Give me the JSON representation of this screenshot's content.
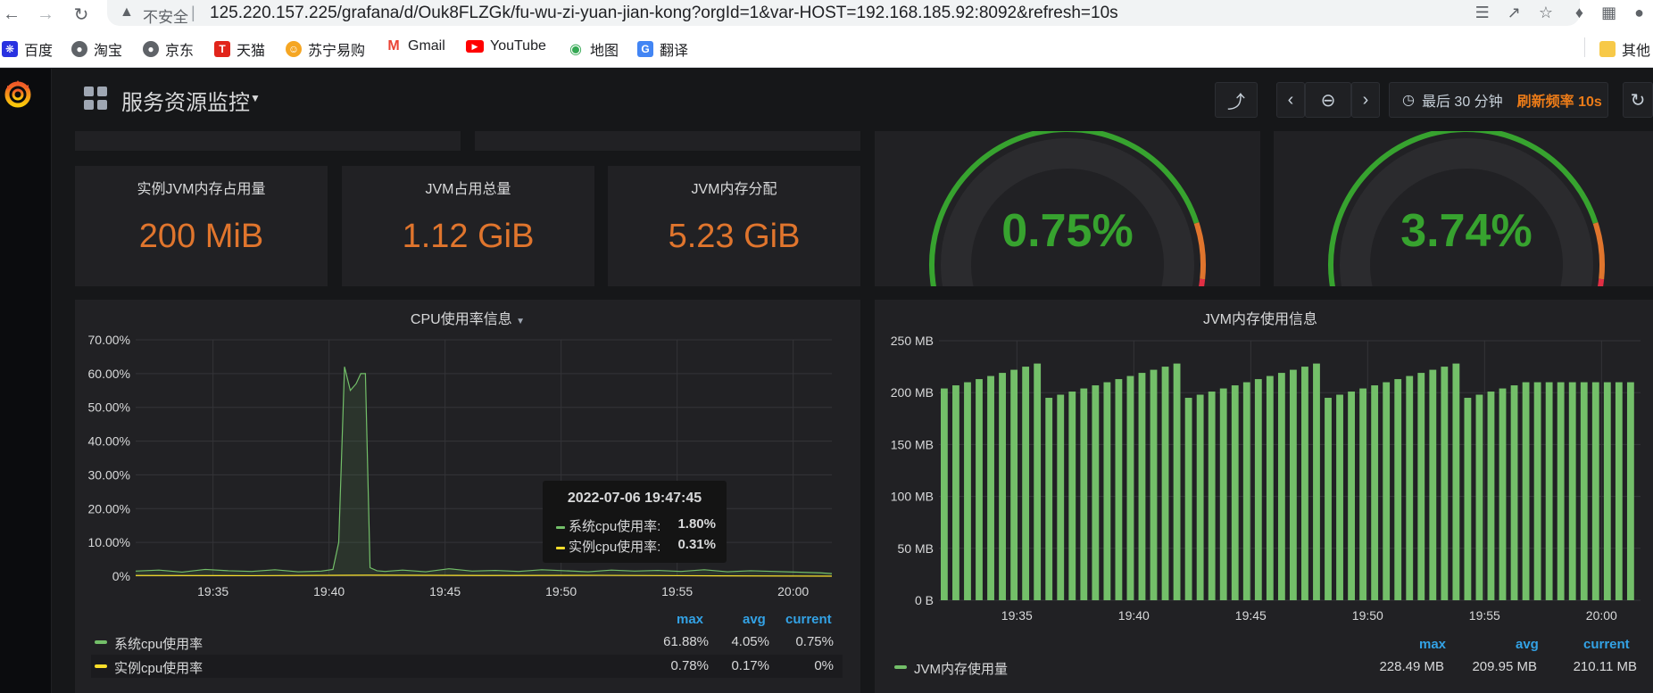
{
  "browser": {
    "security_label": "不安全",
    "url": "125.220.157.225/grafana/d/Ouk8FLZGk/fu-wu-zi-yuan-jian-kong?orgId=1&var-HOST=192.168.185.92:8092&refresh=10s",
    "bookmarks": [
      {
        "label": "百度",
        "icon": "baidu-icon",
        "color": "#2932e1"
      },
      {
        "label": "淘宝",
        "icon": "globe-icon",
        "color": "#5f6368"
      },
      {
        "label": "京东",
        "icon": "globe-icon",
        "color": "#5f6368"
      },
      {
        "label": "天猫",
        "icon": "tmall-icon",
        "color": "#e1251b"
      },
      {
        "label": "苏宁易购",
        "icon": "suning-icon",
        "color": "#f5a623"
      },
      {
        "label": "Gmail",
        "icon": "gmail-icon",
        "color": "#ea4335"
      },
      {
        "label": "YouTube",
        "icon": "youtube-icon",
        "color": "#ff0000"
      },
      {
        "label": "地图",
        "icon": "maps-icon",
        "color": "#34a853"
      },
      {
        "label": "翻译",
        "icon": "translate-icon",
        "color": "#4285f4"
      }
    ],
    "other_bookmarks": "其他"
  },
  "dashboard": {
    "title": "服务资源监控",
    "time_range": "最后 30 分钟",
    "refresh": "刷新频率 10s"
  },
  "stats": [
    {
      "title": "实例JVM内存占用量",
      "value": "200 MiB"
    },
    {
      "title": "JVM占用总量",
      "value": "1.12 GiB"
    },
    {
      "title": "JVM内存分配",
      "value": "5.23 GiB"
    }
  ],
  "gauges": [
    {
      "value": "0.75%",
      "percent": 0.75
    },
    {
      "value": "3.74%",
      "percent": 3.74
    }
  ],
  "colors": {
    "accent": "#eb7b18",
    "green": "#73bf69",
    "yellow": "#fade2a",
    "gauge_green": "#37a32f",
    "gauge_orange": "#e0752d",
    "gauge_red": "#e02f44",
    "legend_head": "#33a2e5"
  },
  "cpu_panel": {
    "title": "CPU使用率信息",
    "legend_headers": [
      "max",
      "avg",
      "current"
    ],
    "legend": [
      {
        "name": "系统cpu使用率",
        "max": "61.88%",
        "avg": "4.05%",
        "current": "0.75%"
      },
      {
        "name": "实例cpu使用率",
        "max": "0.78%",
        "avg": "0.17%",
        "current": "0%"
      }
    ],
    "tooltip": {
      "time": "2022-07-06 19:47:45",
      "rows": [
        {
          "label": "系统cpu使用率:",
          "value": "1.80%"
        },
        {
          "label": "实例cpu使用率:",
          "value": "0.31%"
        }
      ]
    }
  },
  "jvm_panel": {
    "title": "JVM内存使用信息",
    "legend_headers": [
      "max",
      "avg",
      "current"
    ],
    "legend": [
      {
        "name": "JVM内存使用量",
        "max": "228.49 MB",
        "avg": "209.95 MB",
        "current": "210.11 MB"
      }
    ]
  },
  "chart_data": [
    {
      "type": "line",
      "title": "CPU使用率信息",
      "x_ticks": [
        "19:35",
        "19:40",
        "19:45",
        "19:50",
        "19:55",
        "20:00"
      ],
      "y_ticks": [
        "70.00%",
        "60.00%",
        "50.00%",
        "40.00%",
        "30.00%",
        "20.00%",
        "10.00%",
        "0%"
      ],
      "x_range": [
        "19:31:40",
        "20:01:40"
      ],
      "ylim": [
        0,
        70
      ],
      "series": [
        {
          "name": "系统cpu使用率",
          "unit": "%",
          "color": "#73bf69",
          "x_min": [
            0,
            2,
            4,
            6,
            8,
            10,
            12,
            14,
            16,
            17,
            17.5,
            18,
            18.5,
            19,
            19.4,
            19.8,
            20.2,
            20.8,
            21.5,
            23,
            25,
            27,
            29,
            31,
            33,
            35,
            37,
            39,
            41,
            43,
            45,
            47,
            49,
            51,
            53,
            55,
            57,
            59,
            60
          ],
          "values": [
            1.5,
            1.8,
            1.2,
            2.0,
            1.6,
            1.4,
            1.9,
            1.3,
            1.5,
            2.0,
            10,
            62,
            55,
            57,
            60,
            60,
            2.5,
            1.6,
            1.4,
            1.8,
            1.3,
            2.2,
            1.5,
            1.7,
            1.4,
            1.9,
            1.6,
            1.3,
            1.8,
            1.5,
            1.7,
            1.4,
            1.9,
            1.3,
            1.6,
            1.4,
            1.2,
            1.0,
            0.75
          ]
        },
        {
          "name": "实例cpu使用率",
          "unit": "%",
          "color": "#fade2a",
          "x_min": [
            0,
            10,
            20,
            30,
            40,
            50,
            60
          ],
          "values": [
            0.2,
            0.15,
            0.3,
            0.2,
            0.25,
            0.1,
            0.0
          ]
        }
      ]
    },
    {
      "type": "bar",
      "title": "JVM内存使用信息",
      "x_ticks": [
        "19:35",
        "19:40",
        "19:45",
        "19:50",
        "19:55",
        "20:00"
      ],
      "y_ticks": [
        "250 MB",
        "200 MB",
        "150 MB",
        "100 MB",
        "50 MB",
        "0 B"
      ],
      "ylim": [
        0,
        250
      ],
      "series": [
        {
          "name": "JVM内存使用量",
          "unit": "MB",
          "color": "#73bf69",
          "values": [
            204,
            207,
            210,
            213,
            216,
            219,
            222,
            225,
            228,
            195,
            198,
            201,
            204,
            207,
            210,
            213,
            216,
            219,
            222,
            225,
            228,
            195,
            198,
            201,
            204,
            207,
            210,
            213,
            216,
            219,
            222,
            225,
            228,
            195,
            198,
            201,
            204,
            207,
            210,
            213,
            216,
            219,
            222,
            225,
            228,
            195,
            198,
            201,
            204,
            207,
            210,
            210,
            210,
            210,
            210,
            210,
            210,
            210,
            210,
            210
          ]
        }
      ]
    }
  ]
}
